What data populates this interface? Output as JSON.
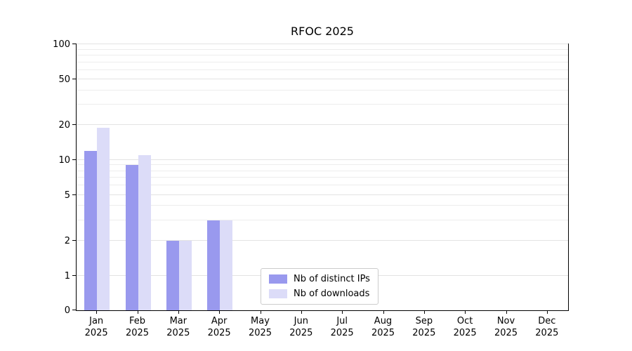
{
  "title": "RFOC 2025",
  "chart_data": {
    "type": "bar",
    "title": "RFOC 2025",
    "categories": [
      "Jan 2025",
      "Feb 2025",
      "Mar 2025",
      "Apr 2025",
      "May 2025",
      "Jun 2025",
      "Jul 2025",
      "Aug 2025",
      "Sep 2025",
      "Oct 2025",
      "Nov 2025",
      "Dec 2025"
    ],
    "series": [
      {
        "name": "Nb of distinct IPs",
        "color": "#9999ee",
        "values": [
          12,
          9,
          2,
          3,
          0,
          0,
          0,
          0,
          0,
          0,
          0,
          0
        ]
      },
      {
        "name": "Nb of downloads",
        "color": "#dcdcf8",
        "values": [
          19,
          11,
          2,
          3,
          0,
          0,
          0,
          0,
          0,
          0,
          0,
          0
        ]
      }
    ],
    "yscale": "symlog",
    "yticks": [
      0,
      1,
      2,
      5,
      10,
      20,
      50,
      100
    ],
    "minor_gridlines": [
      1,
      2,
      3,
      4,
      5,
      6,
      7,
      8,
      9,
      10,
      20,
      30,
      40,
      50,
      60,
      70,
      80,
      90,
      100
    ],
    "ylim": [
      0,
      100
    ],
    "grid": true,
    "legend_position": "lower center"
  }
}
